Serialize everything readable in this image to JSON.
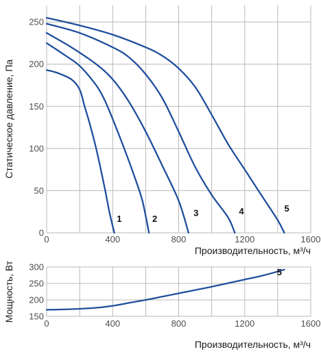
{
  "chart_data": [
    {
      "type": "line",
      "xlabel": "Производительность, м³/ч",
      "ylabel": "Статическое давление, Па",
      "xlim": [
        0,
        1600
      ],
      "ylim": [
        0,
        270
      ],
      "xticks": [
        "0",
        "400",
        "800",
        "1200",
        "1600"
      ],
      "xtick_values": [
        0,
        400,
        800,
        1200,
        1600
      ],
      "yticks": [
        "0",
        "50",
        "100",
        "150",
        "200",
        "250"
      ],
      "ytick_values": [
        0,
        50,
        100,
        150,
        200,
        250
      ],
      "grid": true,
      "series": [
        {
          "name": "1",
          "x": [
            0,
            60,
            150,
            200,
            230,
            260,
            300,
            350,
            380,
            410
          ],
          "y": [
            193,
            190,
            182,
            170,
            150,
            130,
            100,
            55,
            25,
            0
          ]
        },
        {
          "name": "2",
          "x": [
            0,
            100,
            200,
            300,
            350,
            400,
            470,
            530,
            580,
            620
          ],
          "y": [
            225,
            212,
            198,
            175,
            158,
            135,
            100,
            68,
            38,
            0
          ]
        },
        {
          "name": "3",
          "x": [
            0,
            150,
            300,
            400,
            500,
            600,
            700,
            800,
            860
          ],
          "y": [
            237,
            220,
            200,
            182,
            155,
            120,
            80,
            38,
            0
          ]
        },
        {
          "name": "4",
          "x": [
            0,
            200,
            400,
            500,
            600,
            700,
            800,
            900,
            1000,
            1100,
            1140
          ],
          "y": [
            248,
            237,
            220,
            208,
            188,
            160,
            120,
            78,
            45,
            18,
            0
          ]
        },
        {
          "name": "5",
          "x": [
            0,
            200,
            400,
            600,
            700,
            800,
            900,
            1000,
            1100,
            1200,
            1300,
            1400,
            1440
          ],
          "y": [
            255,
            246,
            235,
            220,
            210,
            195,
            173,
            140,
            105,
            75,
            45,
            15,
            0
          ]
        }
      ],
      "labels": [
        {
          "text": "1",
          "x": 440,
          "y": 13
        },
        {
          "text": "2",
          "x": 655,
          "y": 13
        },
        {
          "text": "3",
          "x": 905,
          "y": 20
        },
        {
          "text": "4",
          "x": 1180,
          "y": 22
        },
        {
          "text": "5",
          "x": 1455,
          "y": 25
        }
      ]
    },
    {
      "type": "line",
      "xlabel": "Производительность, м³/ч",
      "ylabel": "Мощность, Вт",
      "xlim": [
        0,
        1600
      ],
      "ylim": [
        150,
        300
      ],
      "xticks": [
        "0",
        "400",
        "800",
        "1200",
        "1600"
      ],
      "xtick_values": [
        0,
        400,
        800,
        1200,
        1600
      ],
      "yticks": [
        "150",
        "200",
        "250",
        "300"
      ],
      "ytick_values": [
        150,
        200,
        250,
        300
      ],
      "grid": true,
      "series": [
        {
          "name": "5",
          "x": [
            0,
            100,
            200,
            300,
            400,
            500,
            600,
            700,
            800,
            900,
            1000,
            1100,
            1200,
            1300,
            1440
          ],
          "y": [
            170,
            171,
            173,
            176,
            182,
            191,
            200,
            210,
            220,
            230,
            240,
            251,
            262,
            273,
            292
          ]
        }
      ],
      "labels": [
        {
          "text": "5",
          "x": 1410,
          "y": 275
        }
      ]
    }
  ]
}
